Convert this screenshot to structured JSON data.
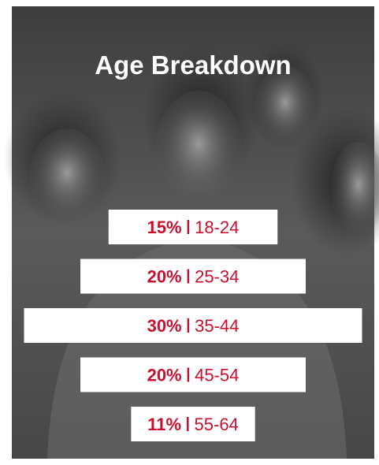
{
  "chart_data": {
    "type": "bar",
    "orientation": "horizontal",
    "title": "Age Breakdown",
    "categories": [
      "18-24",
      "25-34",
      "35-44",
      "45-54",
      "55-64"
    ],
    "values": [
      15,
      20,
      30,
      20,
      11
    ],
    "value_labels": [
      "15%",
      "20%",
      "30%",
      "20%",
      "11%"
    ],
    "color": "#ffffff",
    "label_color": "#c8102e"
  }
}
